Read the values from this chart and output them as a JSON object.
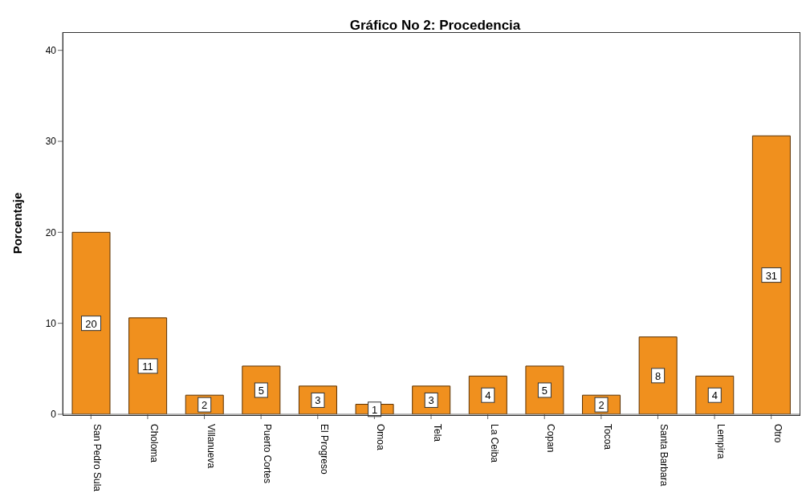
{
  "chart_data": {
    "type": "bar",
    "title": "Gráfico No 2: Procedencia",
    "ylabel": "Porcentaje",
    "categories": [
      "San Pedro Sula",
      "Choloma",
      "Villanueva",
      "Puerto Cortes",
      "El Progreso",
      "Omoa",
      "Tela",
      "La Ceiba",
      "Copan",
      "Tocoa",
      "Santa Barbara",
      "Lempira",
      "Otro"
    ],
    "values": [
      20.0,
      10.6,
      2.1,
      5.3,
      3.1,
      1.1,
      3.1,
      4.2,
      5.3,
      2.1,
      8.5,
      4.2,
      30.6
    ],
    "value_labels": [
      "20",
      "11",
      "2",
      "5",
      "3",
      "1",
      "3",
      "4",
      "5",
      "2",
      "8",
      "4",
      "31"
    ],
    "color": "#f0901e",
    "ylim": [
      0,
      42
    ],
    "yticks": [
      0,
      10,
      20,
      30,
      40
    ],
    "grid": false
  }
}
